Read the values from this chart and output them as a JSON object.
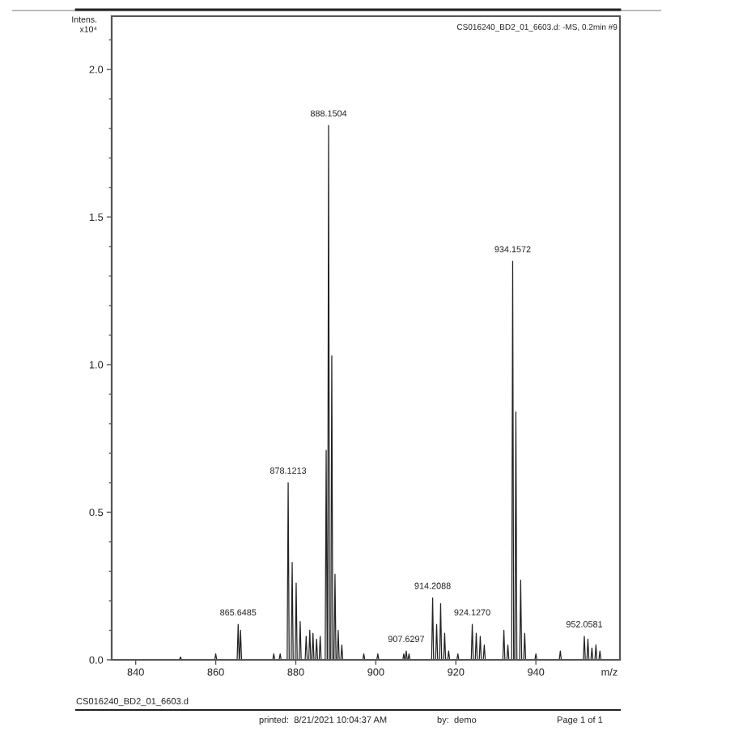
{
  "chart_data": {
    "type": "line",
    "title": "CS016240_BD2_01_6603.d: -MS, 0.2min #9",
    "xlabel": "m/z",
    "ylabel": "Intens.\nx10⁴",
    "x": [
      834,
      850.95,
      851.2,
      851.45,
      859.75,
      860,
      860.25,
      865.35,
      865.6,
      865.85,
      865.95,
      866.2,
      866.45,
      874.25,
      874.5,
      874.75,
      875.85,
      876.1,
      876.35,
      877.85,
      878.1,
      878.35,
      878.85,
      879.1,
      879.35,
      879.85,
      880.1,
      880.35,
      880.85,
      881.1,
      881.35,
      882.35,
      882.6,
      882.85,
      883.25,
      883.5,
      883.75,
      884.05,
      884.3,
      884.55,
      884.95,
      885.2,
      885.45,
      885.85,
      886.1,
      886.35,
      887.35,
      887.6,
      887.85,
      887.95,
      888.2,
      888.45,
      888.75,
      889,
      889.25,
      889.55,
      889.8,
      890.05,
      890.35,
      890.6,
      890.85,
      891.25,
      891.5,
      891.75,
      896.75,
      897,
      897.25,
      900.25,
      900.5,
      900.75,
      906.75,
      907,
      907.25,
      907.35,
      907.6,
      907.85,
      908.05,
      908.3,
      908.55,
      913.95,
      914.2,
      914.45,
      914.95,
      915.2,
      915.45,
      915.95,
      916.2,
      916.45,
      916.95,
      917.2,
      917.45,
      917.95,
      918.2,
      918.45,
      920.25,
      920.5,
      920.75,
      923.85,
      924.1,
      924.35,
      924.85,
      925.1,
      925.35,
      925.85,
      926.1,
      926.35,
      926.85,
      927.1,
      927.35,
      931.75,
      932,
      932.25,
      932.75,
      933,
      933.25,
      933.95,
      934.2,
      934.45,
      934.75,
      935,
      935.25,
      935.95,
      936.2,
      936.45,
      936.95,
      937.2,
      937.45,
      939.75,
      940,
      940.25,
      945.85,
      946.1,
      946.35,
      951.85,
      952.1,
      952.35,
      952.75,
      953,
      953.25,
      953.75,
      954,
      954.25,
      954.75,
      955,
      955.25,
      955.75,
      956,
      956.25,
      961
    ],
    "series": [
      {
        "color": "#222222",
        "values": [
          0,
          0,
          0.01,
          0,
          0,
          0.02,
          0,
          0,
          0.12,
          0,
          0,
          0.1,
          0,
          0,
          0.02,
          0,
          0,
          0.02,
          0,
          0,
          0.6,
          0,
          0,
          0.33,
          0,
          0,
          0.26,
          0,
          0,
          0.13,
          0,
          0,
          0.08,
          0,
          0,
          0.1,
          0,
          0,
          0.09,
          0,
          0,
          0.07,
          0,
          0,
          0.08,
          0,
          0,
          0.71,
          0,
          0,
          1.81,
          0,
          0,
          1.03,
          0,
          0,
          0.29,
          0,
          0,
          0.1,
          0,
          0,
          0.05,
          0,
          0,
          0.02,
          0,
          0,
          0.02,
          0,
          0,
          0.02,
          0,
          0,
          0.03,
          0,
          0,
          0.02,
          0,
          0,
          0.21,
          0,
          0,
          0.12,
          0,
          0,
          0.19,
          0,
          0,
          0.09,
          0,
          0,
          0.03,
          0,
          0,
          0.02,
          0,
          0,
          0.12,
          0,
          0,
          0.09,
          0,
          0,
          0.08,
          0,
          0,
          0.05,
          0,
          0,
          0.1,
          0,
          0,
          0.05,
          0,
          0,
          1.35,
          0,
          0,
          0.84,
          0,
          0,
          0.27,
          0,
          0,
          0.09,
          0,
          0,
          0.02,
          0,
          0,
          0.03,
          0,
          0,
          0.08,
          0,
          0,
          0.07,
          0,
          0,
          0.04,
          0,
          0,
          0.05,
          0,
          0,
          0.03,
          0,
          0
        ]
      }
    ],
    "xlim": [
      834,
      961
    ],
    "ylim": [
      0,
      2.18
    ],
    "xticks": [
      840,
      860,
      880,
      900,
      920,
      940
    ],
    "yticks": [
      {
        "value": 0,
        "label": "0.0"
      },
      {
        "value": 0.1,
        "label": null
      },
      {
        "value": 0.2,
        "label": null
      },
      {
        "value": 0.3,
        "label": null
      },
      {
        "value": 0.4,
        "label": null
      },
      0.5,
      {
        "value": 0.6,
        "label": null
      },
      {
        "value": 0.7,
        "label": null
      },
      {
        "value": 0.8,
        "label": null
      },
      {
        "value": 0.9,
        "label": null
      },
      {
        "value": 1,
        "label": "1.0"
      },
      {
        "value": 1.1,
        "label": null
      },
      {
        "value": 1.2,
        "label": null
      },
      {
        "value": 1.3,
        "label": null
      },
      {
        "value": 1.4,
        "label": null
      },
      1.5,
      {
        "value": 1.6,
        "label": null
      },
      {
        "value": 1.7,
        "label": null
      },
      {
        "value": 1.8,
        "label": null
      },
      {
        "value": 1.9,
        "label": null
      },
      {
        "value": 2,
        "label": "2.0"
      },
      {
        "value": 2.1,
        "label": null
      }
    ],
    "annotations": [
      {
        "text": "865.6485",
        "x": 865.6,
        "y": 0.12
      },
      {
        "text": "878.1213",
        "x": 878.1,
        "y": 0.6
      },
      {
        "text": "888.1504",
        "x": 888.2,
        "y": 1.81
      },
      {
        "text": "907.6297",
        "x": 907.6,
        "y": 0.03
      },
      {
        "text": "914.2088",
        "x": 914.2,
        "y": 0.21
      },
      {
        "text": "924.1270",
        "x": 924.1,
        "y": 0.12
      },
      {
        "text": "934.1572",
        "x": 934.2,
        "y": 1.35
      },
      {
        "text": "952.0581",
        "x": 952.1,
        "y": 0.08
      },
      "CS016240_BD2_01_6603.d",
      "printed:  8/21/2021 10:04:37 AM",
      "by:  demo",
      "Page 1 of 1"
    ]
  }
}
